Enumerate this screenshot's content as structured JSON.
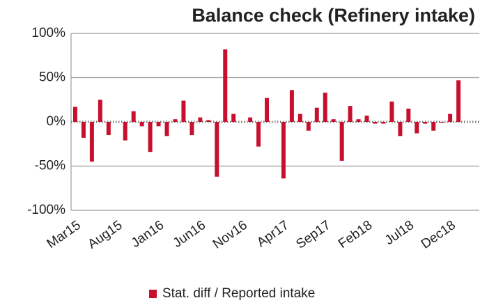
{
  "chart_data": {
    "type": "bar",
    "title": "Balance check (Refinery intake)",
    "categories": [
      "Mar15",
      null,
      null,
      null,
      null,
      "Aug15",
      null,
      null,
      null,
      null,
      "Jan16",
      null,
      null,
      null,
      null,
      "Jun16",
      null,
      null,
      null,
      null,
      "Nov16",
      null,
      null,
      null,
      null,
      "Apr17",
      null,
      null,
      null,
      null,
      "Sep17",
      null,
      null,
      null,
      null,
      "Feb18",
      null,
      null,
      null,
      null,
      "Jul18",
      null,
      null,
      null,
      null,
      "Dec18",
      null
    ],
    "series": [
      {
        "name": "Stat. diff / Reported intake",
        "color": "#c8102e",
        "values": [
          17,
          -18,
          -45,
          25,
          -15,
          0,
          -21,
          12,
          -5,
          -34,
          -5,
          -16,
          3,
          24,
          -15,
          5,
          2,
          -62,
          82,
          9,
          0,
          5,
          -28,
          27,
          0,
          -64,
          36,
          9,
          -10,
          16,
          33,
          3,
          -44,
          18,
          3,
          7,
          -2,
          -2,
          23,
          -16,
          15,
          -13,
          -2,
          -10,
          -1,
          9,
          47
        ]
      }
    ],
    "ylim": [
      -100,
      100
    ],
    "yticks": [
      {
        "value": -100,
        "label": "-100%"
      },
      {
        "value": -50,
        "label": "-50%"
      },
      {
        "value": 0,
        "label": "0%"
      },
      {
        "value": 50,
        "label": "50%"
      },
      {
        "value": 100,
        "label": "100%"
      }
    ],
    "grid": true,
    "legend": "bottom"
  }
}
